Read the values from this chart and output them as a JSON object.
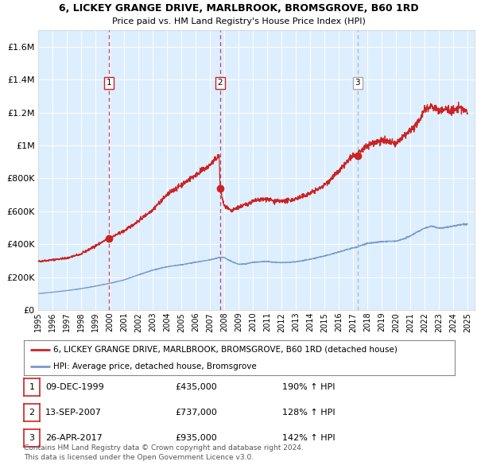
{
  "title": "6, LICKEY GRANGE DRIVE, MARLBROOK, BROMSGROVE, B60 1RD",
  "subtitle": "Price paid vs. HM Land Registry's House Price Index (HPI)",
  "background_color": "#ddeeff",
  "red_line_color": "#cc2222",
  "blue_line_color": "#7799cc",
  "vline_color_red": "#cc2222",
  "vline_color_grey": "#aaaaaa",
  "marker_color": "#cc2222",
  "ylim": [
    0,
    1700000
  ],
  "yticks": [
    0,
    200000,
    400000,
    600000,
    800000,
    1000000,
    1200000,
    1400000,
    1600000
  ],
  "ytick_labels": [
    "£0",
    "£200K",
    "£400K",
    "£600K",
    "£800K",
    "£1M",
    "£1.2M",
    "£1.4M",
    "£1.6M"
  ],
  "xlim_start": 1995.0,
  "xlim_end": 2025.5,
  "xticks": [
    1995,
    1996,
    1997,
    1998,
    1999,
    2000,
    2001,
    2002,
    2003,
    2004,
    2005,
    2006,
    2007,
    2008,
    2009,
    2010,
    2011,
    2012,
    2013,
    2014,
    2015,
    2016,
    2017,
    2018,
    2019,
    2020,
    2021,
    2022,
    2023,
    2024,
    2025
  ],
  "sales": [
    {
      "label": "1",
      "date_num": 1999.94,
      "price": 435000,
      "vline_color": "#cc2222"
    },
    {
      "label": "2",
      "date_num": 2007.71,
      "price": 737000,
      "vline_color": "#cc2222"
    },
    {
      "label": "3",
      "date_num": 2017.32,
      "price": 935000,
      "vline_color": "#aaaaaa"
    }
  ],
  "legend_red": "6, LICKEY GRANGE DRIVE, MARLBROOK, BROMSGROVE, B60 1RD (detached house)",
  "legend_blue": "HPI: Average price, detached house, Bromsgrove",
  "table_rows": [
    {
      "num": "1",
      "date": "09-DEC-1999",
      "price": "£435,000",
      "hpi": "190% ↑ HPI"
    },
    {
      "num": "2",
      "date": "13-SEP-2007",
      "price": "£737,000",
      "hpi": "128% ↑ HPI"
    },
    {
      "num": "3",
      "date": "26-APR-2017",
      "price": "£935,000",
      "hpi": "142% ↑ HPI"
    }
  ],
  "footer_line1": "Contains HM Land Registry data © Crown copyright and database right 2024.",
  "footer_line2": "This data is licensed under the Open Government Licence v3.0."
}
